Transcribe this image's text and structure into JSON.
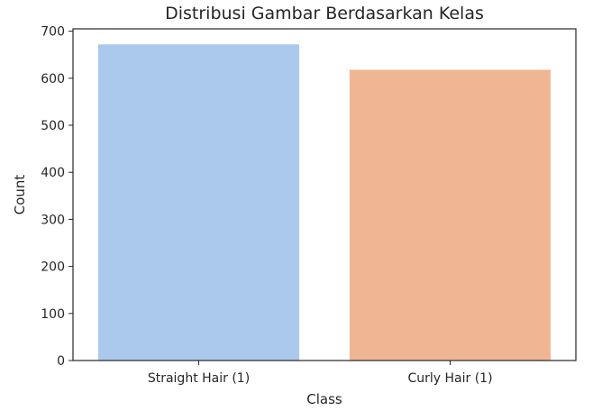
{
  "chart_data": {
    "type": "bar",
    "title": "Distribusi Gambar Berdasarkan Kelas",
    "xlabel": "Class",
    "ylabel": "Count",
    "categories": [
      "Straight Hair (1)",
      "Curly Hair (1)"
    ],
    "values": [
      672,
      618
    ],
    "colors": [
      "#abc9ec",
      "#f0b694"
    ],
    "ylim": [
      0,
      705
    ],
    "yticks": [
      0,
      100,
      200,
      300,
      400,
      500,
      600,
      700
    ],
    "grid": false,
    "legend": "none"
  }
}
